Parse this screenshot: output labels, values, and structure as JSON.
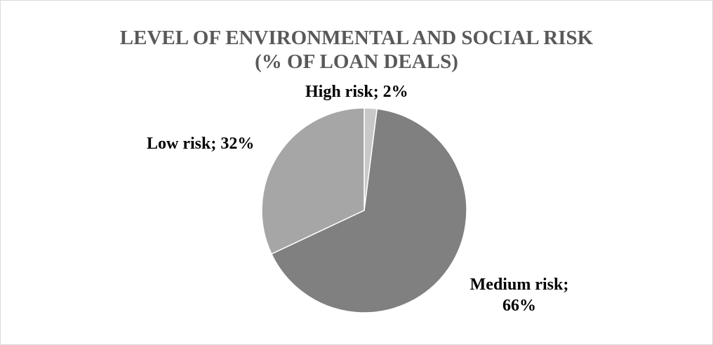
{
  "chart_data": {
    "type": "pie",
    "title_lines": [
      "LEVEL OF ENVIRONMENTAL AND SOCIAL RISK",
      "(% OF LOAN DEALS)"
    ],
    "slices": [
      {
        "name": "High risk",
        "value": 2,
        "label": "High risk; 2%",
        "color": "#c8c8c8"
      },
      {
        "name": "Medium risk",
        "value": 66,
        "label_line1": "Medium risk;",
        "label_line2": "66%",
        "color": "#808080"
      },
      {
        "name": "Low risk",
        "value": 32,
        "label": "Low risk; 32%",
        "color": "#a6a6a6"
      }
    ],
    "legend": "none"
  }
}
